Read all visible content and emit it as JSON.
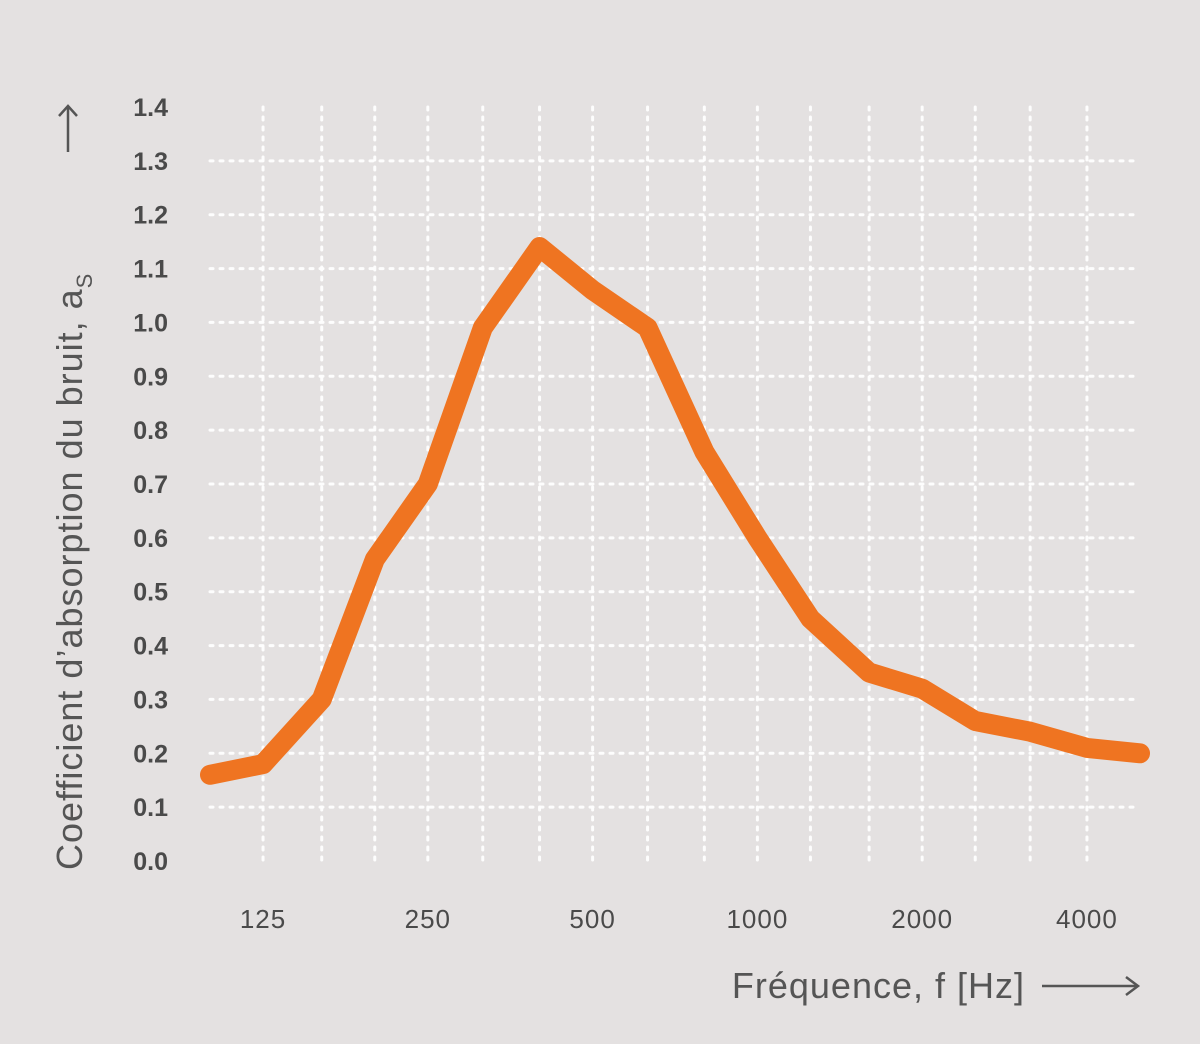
{
  "chart_data": {
    "type": "line",
    "xlabel": "Fréquence, f [Hz]",
    "ylabel_main": "Coefficient d’absorption du bruit, a",
    "ylabel_sub": "S",
    "x_scale": "log",
    "xlim": [
      100,
      5000
    ],
    "ylim": [
      0.0,
      1.4
    ],
    "x_ticks": [
      125,
      250,
      500,
      1000,
      2000,
      4000
    ],
    "x_tick_labels": [
      "125",
      "250",
      "500",
      "1000",
      "2000",
      "4000"
    ],
    "y_ticks": [
      0.0,
      0.1,
      0.2,
      0.3,
      0.4,
      0.5,
      0.6,
      0.7,
      0.8,
      0.9,
      1.0,
      1.1,
      1.2,
      1.3,
      1.4
    ],
    "y_tick_labels": [
      "0.0",
      "0.1",
      "0.2",
      "0.3",
      "0.4",
      "0.5",
      "0.6",
      "0.7",
      "0.8",
      "0.9",
      "1.0",
      "1.1",
      "1.2",
      "1.3",
      "1.4"
    ],
    "grid": true,
    "series": [
      {
        "color": "#ef7421",
        "x": [
          100,
          125,
          160,
          200,
          250,
          315,
          400,
          500,
          630,
          800,
          1000,
          1250,
          1600,
          2000,
          2500,
          3150,
          4000,
          5000
        ],
        "y": [
          0.16,
          0.18,
          0.3,
          0.56,
          0.7,
          0.99,
          1.14,
          1.06,
          0.99,
          0.76,
          0.6,
          0.45,
          0.35,
          0.32,
          0.26,
          0.24,
          0.21,
          0.2
        ]
      }
    ]
  }
}
